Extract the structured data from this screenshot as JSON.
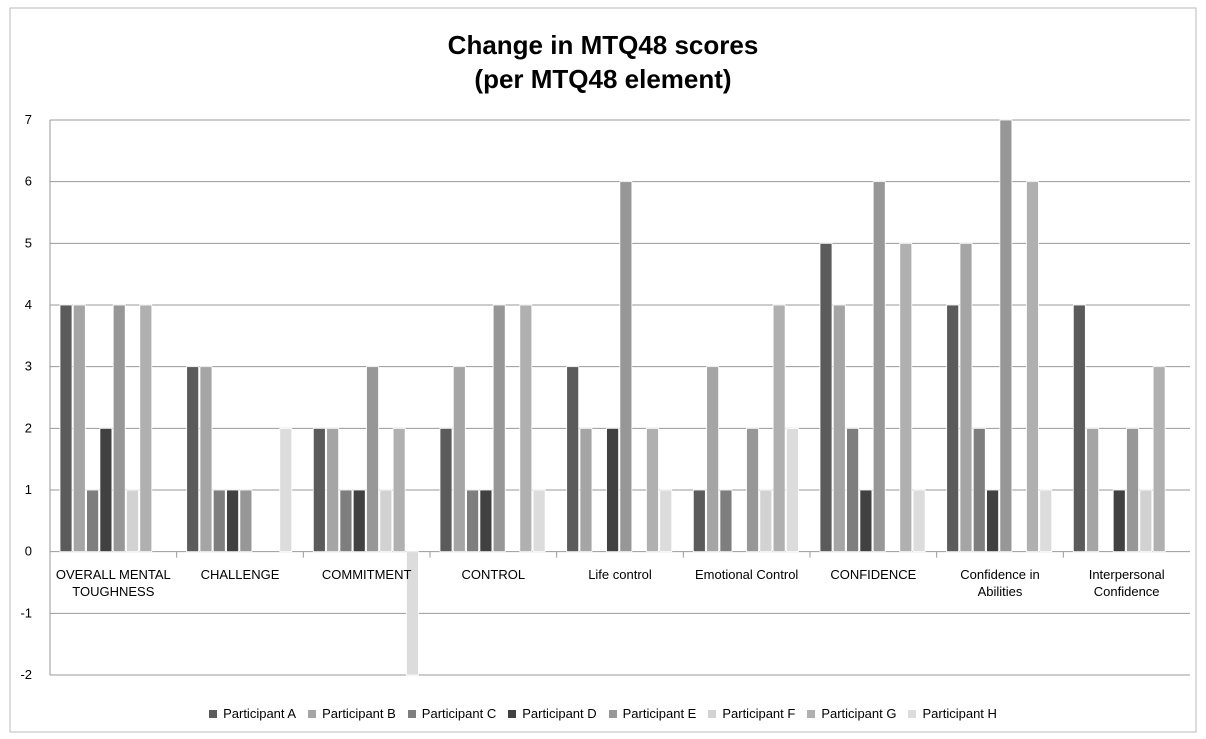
{
  "chart_data": {
    "type": "bar",
    "title": "Change in MTQ48 scores",
    "subtitle": "(per MTQ48 element)",
    "categories": [
      "OVERALL MENTAL TOUGHNESS",
      "CHALLENGE",
      "COMMITMENT",
      "CONTROL",
      "Life control",
      "Emotional Control",
      "CONFIDENCE",
      "Confidence in Abilities",
      "Interpersonal Confidence"
    ],
    "series": [
      {
        "name": "Participant A",
        "color": "#5b5b5b",
        "values": [
          4,
          3,
          2,
          2,
          3,
          1,
          5,
          4,
          4
        ]
      },
      {
        "name": "Participant B",
        "color": "#a5a5a5",
        "values": [
          4,
          3,
          2,
          3,
          2,
          3,
          4,
          5,
          2
        ]
      },
      {
        "name": "Participant C",
        "color": "#7e7e7e",
        "values": [
          1,
          1,
          1,
          1,
          0,
          1,
          2,
          2,
          0
        ]
      },
      {
        "name": "Participant D",
        "color": "#414141",
        "values": [
          2,
          1,
          1,
          1,
          2,
          0,
          1,
          1,
          1
        ]
      },
      {
        "name": "Participant E",
        "color": "#979797",
        "values": [
          4,
          1,
          3,
          4,
          6,
          2,
          6,
          7,
          2
        ]
      },
      {
        "name": "Participant F",
        "color": "#d2d2d2",
        "values": [
          1,
          0,
          1,
          0,
          0,
          1,
          0,
          0,
          1
        ]
      },
      {
        "name": "Participant G",
        "color": "#b0b0b0",
        "values": [
          4,
          0,
          2,
          4,
          2,
          4,
          5,
          6,
          3
        ]
      },
      {
        "name": "Participant H",
        "color": "#dcdcdc",
        "values": [
          0,
          2,
          -2,
          1,
          1,
          2,
          1,
          1,
          0
        ]
      }
    ],
    "ylim": [
      -2,
      7
    ],
    "yticks": [
      -2,
      -1,
      0,
      1,
      2,
      3,
      4,
      5,
      6,
      7
    ],
    "grid": true,
    "legend": "bottom"
  }
}
